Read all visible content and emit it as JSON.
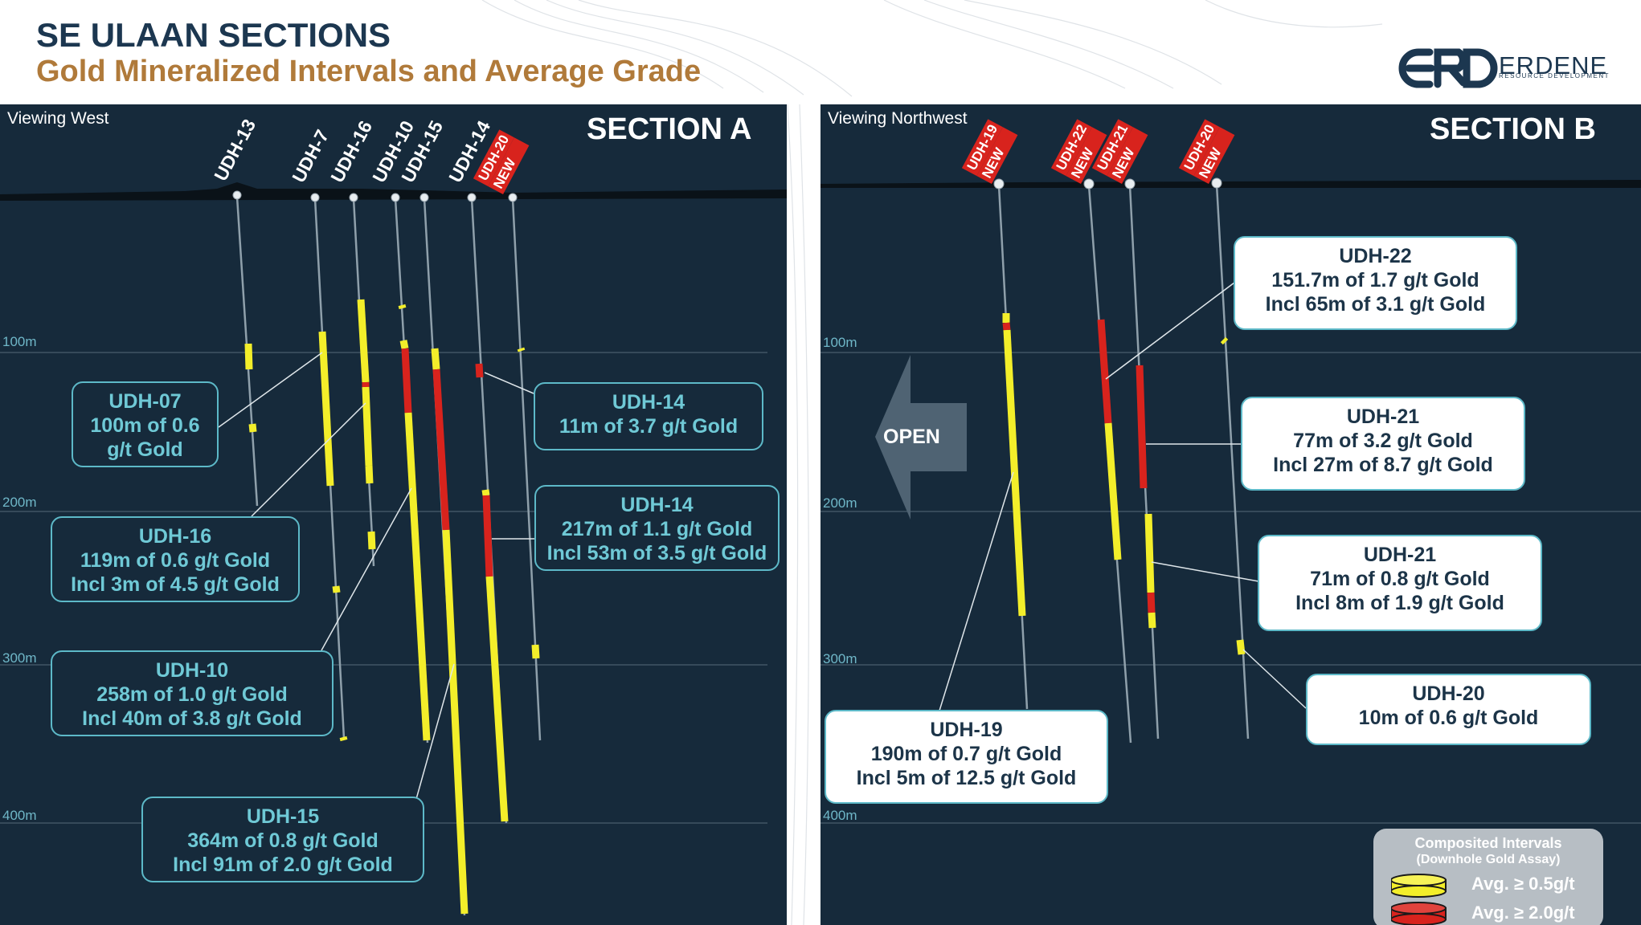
{
  "header": {
    "title": "SE ULAAN SECTIONS",
    "subtitle": "Gold Mineralized Intervals and Average Grade"
  },
  "logo": {
    "name": "ERDENE",
    "tagline": "RESOURCE DEVELOPMENT"
  },
  "colors": {
    "panel": "#162a3b",
    "yellow": "#f3ee2a",
    "red": "#d8231d",
    "box_outline": "#5db9c8",
    "title": "#1c3750",
    "subtitle": "#b07a3a"
  },
  "depth_labels": [
    "100m",
    "200m",
    "300m",
    "400m"
  ],
  "section_a": {
    "title": "SECTION A",
    "viewing": "Viewing West",
    "holes": [
      "UDH-13",
      "UDH-7",
      "UDH-16",
      "UDH-10",
      "UDH-15",
      "UDH-14",
      "UDH-20"
    ],
    "new_badge": "NEW",
    "callouts": [
      {
        "title": "UDH-07",
        "lines": [
          "100m of 0.6",
          "g/t Gold"
        ]
      },
      {
        "title": "UDH-16",
        "lines": [
          "119m of 0.6 g/t Gold",
          "Incl 3m of 4.5 g/t Gold"
        ]
      },
      {
        "title": "UDH-10",
        "lines": [
          "258m of 1.0 g/t Gold",
          "Incl 40m of 3.8 g/t Gold"
        ]
      },
      {
        "title": "UDH-15",
        "lines": [
          "364m of 0.8 g/t Gold",
          "Incl 91m of 2.0 g/t Gold"
        ]
      },
      {
        "title": "UDH-14",
        "lines": [
          "11m of 3.7 g/t Gold"
        ]
      },
      {
        "title": "UDH-14",
        "lines": [
          "217m of 1.1 g/t Gold",
          "Incl 53m of 3.5 g/t Gold"
        ]
      }
    ]
  },
  "section_b": {
    "title": "SECTION B",
    "viewing": "Viewing Northwest",
    "holes": [
      "UDH-19",
      "UDH-22",
      "UDH-21",
      "UDH-20"
    ],
    "new_badge": "NEW",
    "open_label": "OPEN",
    "callouts": [
      {
        "title": "UDH-22",
        "lines": [
          "151.7m of 1.7 g/t Gold",
          "Incl 65m of 3.1 g/t Gold"
        ]
      },
      {
        "title": "UDH-21",
        "lines": [
          "77m of 3.2 g/t Gold",
          "Incl 27m of 8.7 g/t Gold"
        ]
      },
      {
        "title": "UDH-21",
        "lines": [
          "71m of 0.8 g/t Gold",
          "Incl 8m of 1.9 g/t Gold"
        ]
      },
      {
        "title": "UDH-20",
        "lines": [
          "10m of 0.6 g/t Gold"
        ]
      },
      {
        "title": "UDH-19",
        "lines": [
          "190m of 0.7 g/t Gold",
          "Incl 5m of 12.5 g/t Gold"
        ]
      }
    ]
  },
  "legend": {
    "title": "Composited Intervals",
    "subtitle": "(Downhole Gold Assay)",
    "items": [
      {
        "label": "Avg. ≥ 0.5g/t",
        "color": "#f3ee2a"
      },
      {
        "label": "Avg. ≥ 2.0g/t",
        "color": "#d8231d"
      }
    ]
  }
}
